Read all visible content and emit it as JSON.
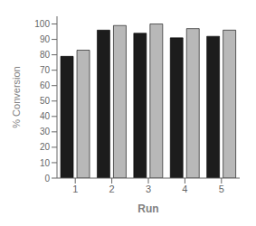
{
  "chart_data": {
    "type": "bar",
    "xlabel": "Run",
    "ylabel": "% Conversion",
    "categories": [
      "1",
      "2",
      "3",
      "4",
      "5"
    ],
    "series": [
      {
        "color": "#1c1c1c",
        "values": [
          79,
          96,
          94,
          91,
          92
        ]
      },
      {
        "color": "#b8b8b8",
        "values": [
          83,
          99,
          100,
          97,
          96
        ]
      }
    ],
    "ylim": [
      0,
      105
    ],
    "yticks": [
      0,
      10,
      20,
      30,
      40,
      50,
      60,
      70,
      80,
      90,
      100
    ],
    "grid": false
  }
}
